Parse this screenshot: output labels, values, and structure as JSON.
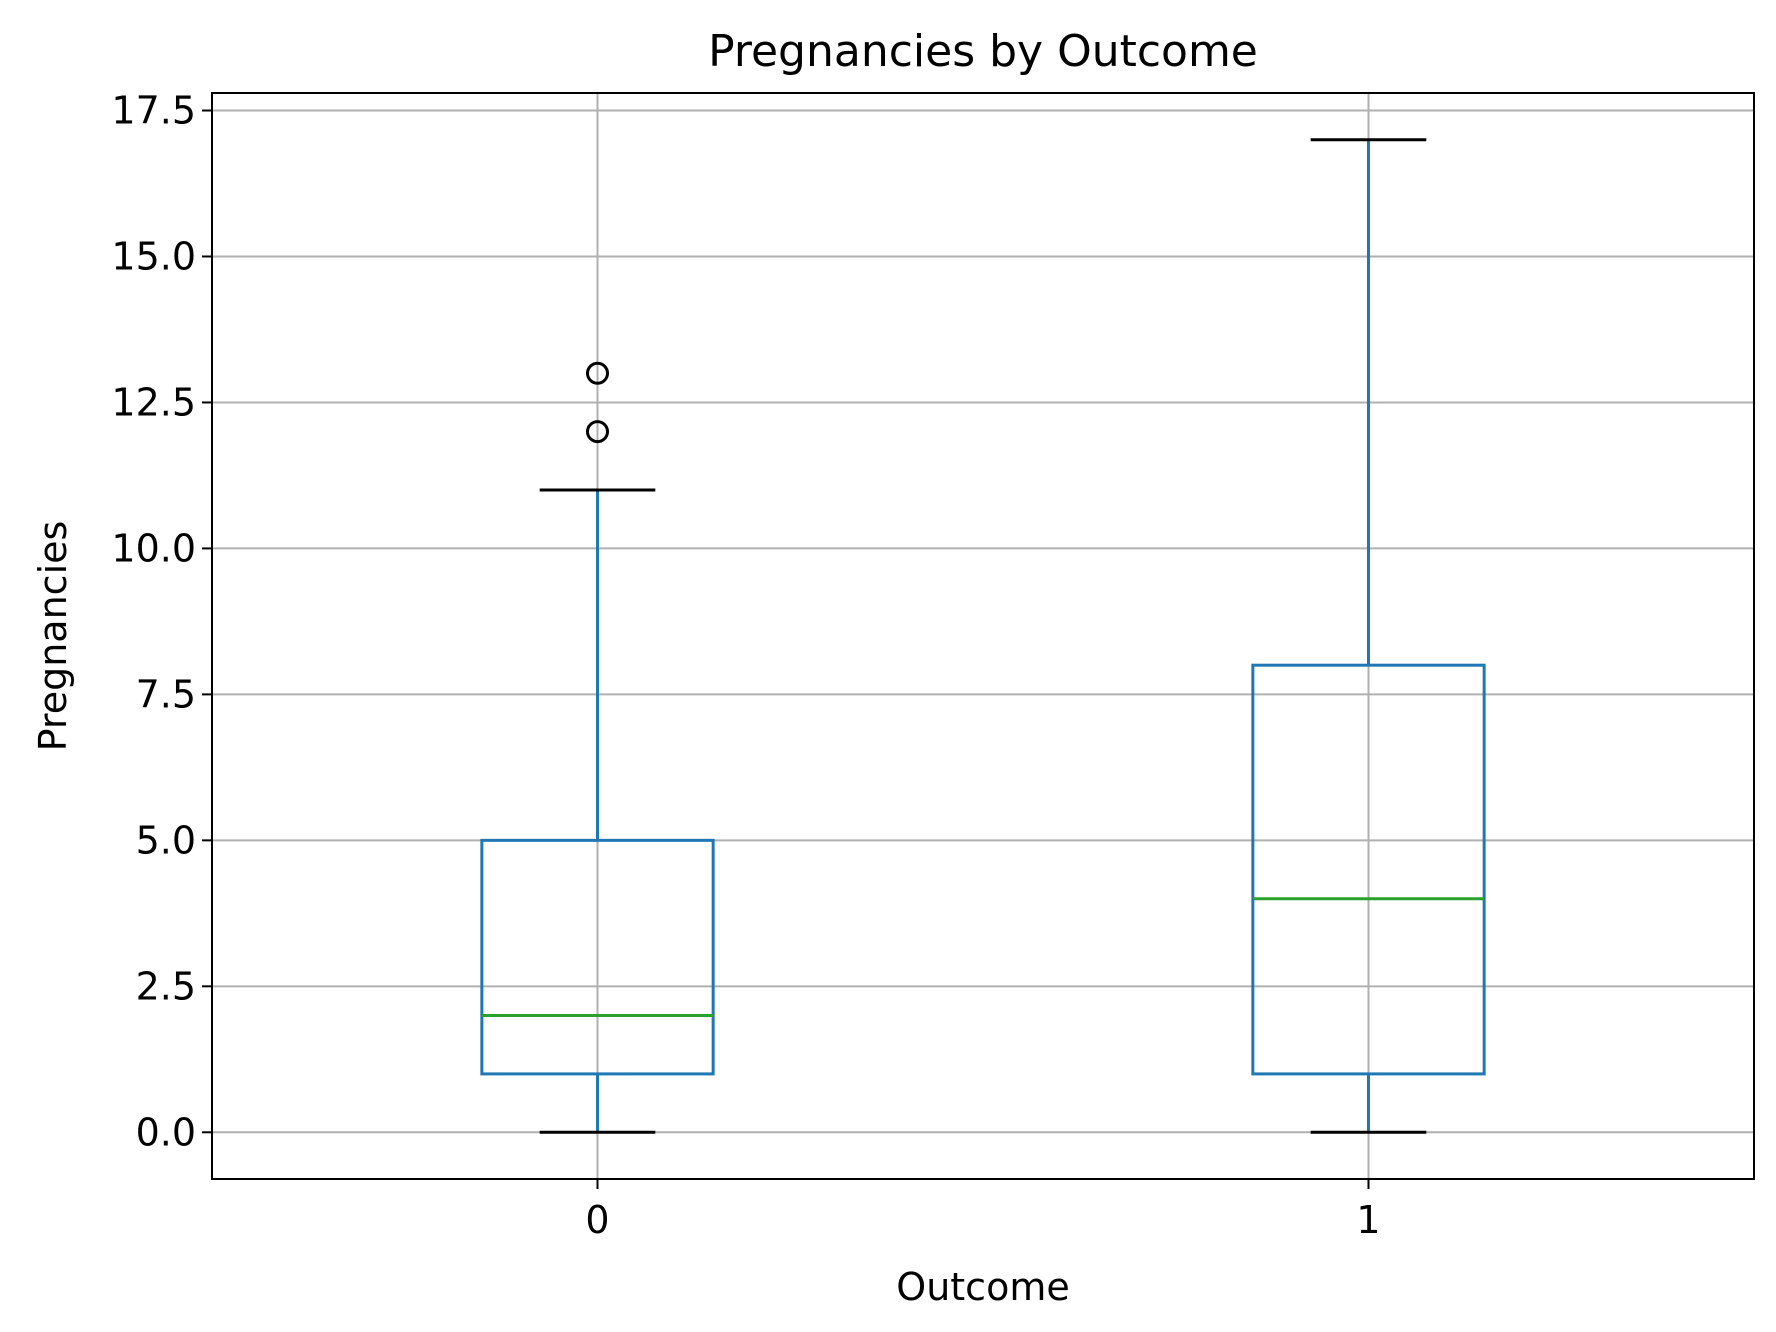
{
  "chart_data": {
    "type": "box",
    "title": "Pregnancies by Outcome",
    "xlabel": "Outcome",
    "ylabel": "Pregnancies",
    "ylim": [
      -0.8,
      17.8
    ],
    "grid": true,
    "y_ticks": [
      "0.0",
      "2.5",
      "5.0",
      "7.5",
      "10.0",
      "12.5",
      "15.0",
      "17.5"
    ],
    "y_tick_values": [
      0,
      2.5,
      5,
      7.5,
      10,
      12.5,
      15,
      17.5
    ],
    "categories": [
      "0",
      "1"
    ],
    "boxes": [
      {
        "category": "0",
        "whisker_low": 0,
        "q1": 1,
        "median": 2,
        "q3": 5,
        "whisker_high": 11,
        "outliers": [
          12,
          13
        ]
      },
      {
        "category": "1",
        "whisker_low": 0,
        "q1": 1,
        "median": 4,
        "q3": 8,
        "whisker_high": 17,
        "outliers": []
      }
    ],
    "colors": {
      "box": "#1f77b4",
      "median": "#2ca02c",
      "grid": "#b0b0b0",
      "outlier": "#000000"
    }
  }
}
